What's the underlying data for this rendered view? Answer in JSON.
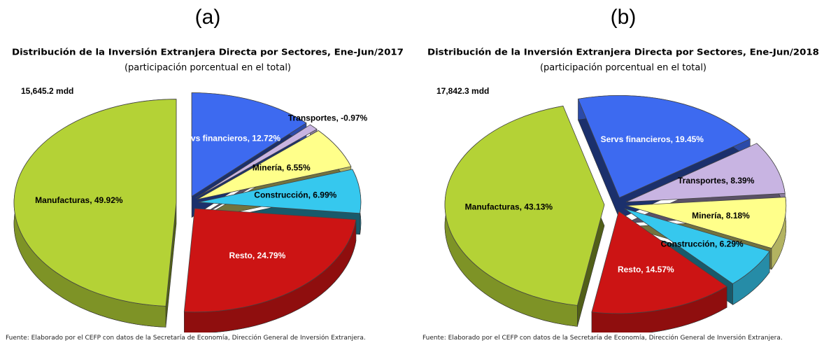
{
  "chart_data": [
    {
      "type": "pie",
      "panel_label": "(a)",
      "title": "Distribución  de la Inversión Extranjera Directa por Sectores, Ene-Jun/2017",
      "subtitle": "(participación porcentual en el total)",
      "annotation": "15,645.2 mdd",
      "value_labels": [
        "Servs financieros, 12.72%",
        "Transportes, -0.97%",
        "Minería, 6.55%",
        "Construcción, 6.99%",
        "Resto, 24.79%",
        "Manufacturas, 49.92%"
      ],
      "values": [
        12.72,
        -0.97,
        6.55,
        6.99,
        24.79,
        49.92
      ],
      "colors": [
        "#3d6af0",
        "#c8b4e2",
        "#ffff8a",
        "#36c8ee",
        "#cc1414",
        "#b4d236"
      ],
      "exploded": true,
      "source": "Fuente: Elaborado por el CEFP con datos de la Secretaría de Economía, Dirección General de Inversión Extranjera."
    },
    {
      "type": "pie",
      "panel_label": "(b)",
      "title": "Distribución  de la Inversión Extranjera Directa por Sectores, Ene-Jun/2018",
      "subtitle": "(participación porcentual en el total)",
      "annotation": "17,842.3 mdd",
      "value_labels": [
        "Servs financieros, 19.45%",
        "Transportes, 8.39%",
        "Minería, 8.18%",
        "Construcción, 6.29%",
        "Resto, 14.57%",
        "Manufacturas, 43.13%"
      ],
      "values": [
        19.45,
        8.39,
        8.18,
        6.29,
        14.57,
        43.13
      ],
      "colors": [
        "#3d6af0",
        "#c8b4e2",
        "#ffff8a",
        "#36c8ee",
        "#cc1414",
        "#b4d236"
      ],
      "exploded": true,
      "source": "Fuente: Elaborado por el CEFP con datos de la Secretaría de Economía, Dirección General de Inversión Extranjera."
    }
  ]
}
